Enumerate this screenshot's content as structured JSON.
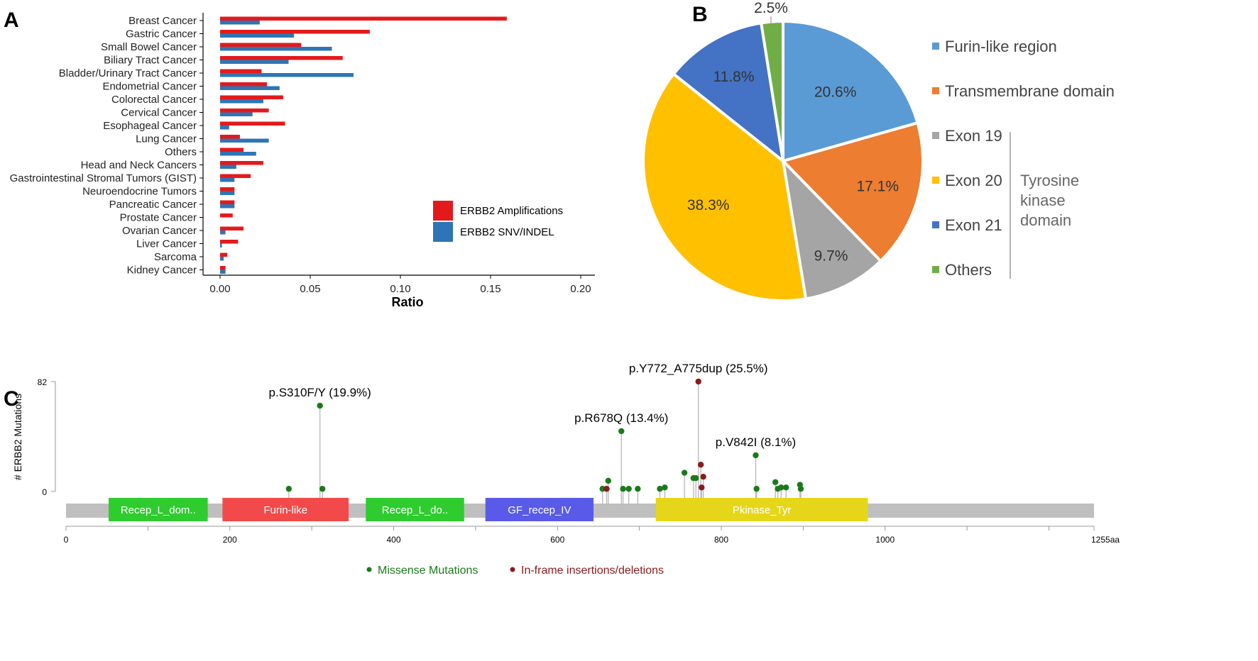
{
  "panels": {
    "a": "A",
    "b": "B",
    "c": "C"
  },
  "chart_data": [
    {
      "type": "bar",
      "orientation": "horizontal",
      "categories": [
        "Breast Cancer",
        "Gastric Cancer",
        "Small Bowel Cancer",
        "Biliary Tract Cancer",
        "Bladder/Urinary Tract Cancer",
        "Endometrial Cancer",
        "Colorectal Cancer",
        "Cervical Cancer",
        "Esophageal Cancer",
        "Lung Cancer",
        "Others",
        "Head and Neck Cancers",
        "Gastrointestinal Stromal Tumors (GIST)",
        "Neuroendocrine Tumors",
        "Pancreatic Cancer",
        "Prostate Cancer",
        "Ovarian Cancer",
        "Liver Cancer",
        "Sarcoma",
        "Kidney Cancer"
      ],
      "series": [
        {
          "name": "ERBB2 Amplifications",
          "color": "#e31a1c",
          "values": [
            0.159,
            0.083,
            0.045,
            0.068,
            0.023,
            0.026,
            0.035,
            0.027,
            0.036,
            0.011,
            0.013,
            0.024,
            0.017,
            0.008,
            0.008,
            0.007,
            0.013,
            0.01,
            0.004,
            0.003
          ]
        },
        {
          "name": "ERBB2 SNV/INDEL",
          "color": "#2e75b6",
          "values": [
            0.022,
            0.041,
            0.062,
            0.038,
            0.074,
            0.033,
            0.024,
            0.018,
            0.005,
            0.027,
            0.02,
            0.009,
            0.008,
            0.008,
            0.008,
            0.0,
            0.003,
            0.001,
            0.002,
            0.003
          ]
        }
      ],
      "xlabel": "Ratio",
      "xlim": [
        0.0,
        0.2
      ],
      "xticks": [
        "0.00",
        "0.05",
        "0.10",
        "0.15",
        "0.20"
      ],
      "legend_position": "bottom-right"
    },
    {
      "type": "pie",
      "slices": [
        {
          "name": "Furin-like region",
          "value": 20.6,
          "label": "20.6%",
          "color": "#5b9bd5"
        },
        {
          "name": "Transmembrane domain",
          "value": 17.1,
          "label": "17.1%",
          "color": "#ed7d31"
        },
        {
          "name": "Exon 19",
          "value": 9.7,
          "label": "9.7%",
          "color": "#a5a5a5"
        },
        {
          "name": "Exon 20",
          "value": 38.3,
          "label": "38.3%",
          "color": "#ffc000"
        },
        {
          "name": "Exon 21",
          "value": 11.8,
          "label": "11.8%",
          "color": "#4472c4"
        },
        {
          "name": "Others",
          "value": 2.5,
          "label": "2.5%",
          "color": "#70ad47"
        }
      ],
      "bracket_label_lines": [
        "Tyrosine",
        "kinase",
        "domain"
      ],
      "legend_position": "right"
    },
    {
      "type": "scatter",
      "subtype": "lollipop",
      "ylabel": "# ERBB2 Mutations",
      "ylim": [
        0,
        82
      ],
      "yticks": [
        "0",
        "82"
      ],
      "xlim": [
        0,
        1255
      ],
      "xticks": [
        "0",
        "200",
        "400",
        "600",
        "800",
        "1000",
        "1255aa"
      ],
      "domains": [
        {
          "label": "Recep_L_dom..",
          "start": 52,
          "end": 173,
          "color": "#2ecc2e"
        },
        {
          "label": "Furin-like",
          "start": 191,
          "end": 345,
          "color": "#f24a4a"
        },
        {
          "label": "Recep_L_do..",
          "start": 366,
          "end": 486,
          "color": "#2ecc2e"
        },
        {
          "label": "GF_recep_IV",
          "start": 512,
          "end": 644,
          "color": "#5a5ae8"
        },
        {
          "label": "Pkinase_Tyr",
          "start": 720,
          "end": 979,
          "color": "#e6d619"
        }
      ],
      "series": [
        {
          "name": "Missense Mutations",
          "color": "#1a7a1a",
          "points": [
            {
              "x": 272,
              "y": 2
            },
            {
              "x": 310,
              "y": 64
            },
            {
              "x": 313,
              "y": 2
            },
            {
              "x": 655,
              "y": 2
            },
            {
              "x": 662,
              "y": 8
            },
            {
              "x": 678,
              "y": 45
            },
            {
              "x": 680,
              "y": 2
            },
            {
              "x": 687,
              "y": 2
            },
            {
              "x": 698,
              "y": 2
            },
            {
              "x": 725,
              "y": 2
            },
            {
              "x": 731,
              "y": 3
            },
            {
              "x": 755,
              "y": 14
            },
            {
              "x": 766,
              "y": 10
            },
            {
              "x": 769,
              "y": 10
            },
            {
              "x": 842,
              "y": 27
            },
            {
              "x": 843,
              "y": 2
            },
            {
              "x": 866,
              "y": 7
            },
            {
              "x": 869,
              "y": 2
            },
            {
              "x": 873,
              "y": 3
            },
            {
              "x": 879,
              "y": 3
            },
            {
              "x": 896,
              "y": 5
            },
            {
              "x": 897,
              "y": 2
            }
          ]
        },
        {
          "name": "In-frame insertions/deletions",
          "color": "#8b1a1a",
          "points": [
            {
              "x": 660,
              "y": 2
            },
            {
              "x": 772,
              "y": 82
            },
            {
              "x": 775,
              "y": 20
            },
            {
              "x": 776,
              "y": 3
            },
            {
              "x": 778,
              "y": 11
            }
          ]
        }
      ],
      "annotations": [
        {
          "text": "p.S310F/Y (19.9%)",
          "x": 310,
          "y": 64
        },
        {
          "text": "p.R678Q (13.4%)",
          "x": 678,
          "y": 45
        },
        {
          "text": "p.Y772_A775dup (25.5%)",
          "x": 772,
          "y": 82
        },
        {
          "text": "p.V842I (8.1%)",
          "x": 842,
          "y": 27
        }
      ]
    }
  ]
}
